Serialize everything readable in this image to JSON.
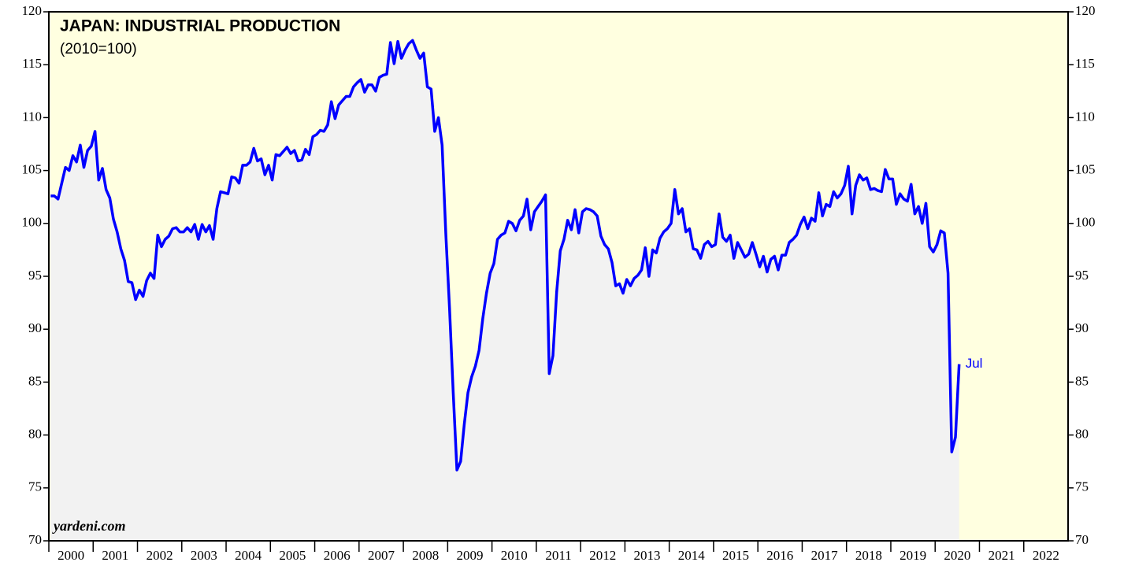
{
  "chart_data": {
    "type": "line",
    "title": "JAPAN: INDUSTRIAL PRODUCTION",
    "subtitle": "(2010=100)",
    "source": "yardeni.com",
    "annotation": "Jul",
    "color": "#0000ff",
    "x": [
      "2000-01",
      "2000-02",
      "2000-03",
      "2000-04",
      "2000-05",
      "2000-06",
      "2000-07",
      "2000-08",
      "2000-09",
      "2000-10",
      "2000-11",
      "2000-12",
      "2001-01",
      "2001-02",
      "2001-03",
      "2001-04",
      "2001-05",
      "2001-06",
      "2001-07",
      "2001-08",
      "2001-09",
      "2001-10",
      "2001-11",
      "2001-12",
      "2002-01",
      "2002-02",
      "2002-03",
      "2002-04",
      "2002-05",
      "2002-06",
      "2002-07",
      "2002-08",
      "2002-09",
      "2002-10",
      "2002-11",
      "2002-12",
      "2003-01",
      "2003-02",
      "2003-03",
      "2003-04",
      "2003-05",
      "2003-06",
      "2003-07",
      "2003-08",
      "2003-09",
      "2003-10",
      "2003-11",
      "2003-12",
      "2004-01",
      "2004-02",
      "2004-03",
      "2004-04",
      "2004-05",
      "2004-06",
      "2004-07",
      "2004-08",
      "2004-09",
      "2004-10",
      "2004-11",
      "2004-12",
      "2005-01",
      "2005-02",
      "2005-03",
      "2005-04",
      "2005-05",
      "2005-06",
      "2005-07",
      "2005-08",
      "2005-09",
      "2005-10",
      "2005-11",
      "2005-12",
      "2006-01",
      "2006-02",
      "2006-03",
      "2006-04",
      "2006-05",
      "2006-06",
      "2006-07",
      "2006-08",
      "2006-09",
      "2006-10",
      "2006-11",
      "2006-12",
      "2007-01",
      "2007-02",
      "2007-03",
      "2007-04",
      "2007-05",
      "2007-06",
      "2007-07",
      "2007-08",
      "2007-09",
      "2007-10",
      "2007-11",
      "2007-12",
      "2008-01",
      "2008-02",
      "2008-03",
      "2008-04",
      "2008-05",
      "2008-06",
      "2008-07",
      "2008-08",
      "2008-09",
      "2008-10",
      "2008-11",
      "2008-12",
      "2009-01",
      "2009-02",
      "2009-03",
      "2009-04",
      "2009-05",
      "2009-06",
      "2009-07",
      "2009-08",
      "2009-09",
      "2009-10",
      "2009-11",
      "2009-12",
      "2010-01",
      "2010-02",
      "2010-03",
      "2010-04",
      "2010-05",
      "2010-06",
      "2010-07",
      "2010-08",
      "2010-09",
      "2010-10",
      "2010-11",
      "2010-12",
      "2011-01",
      "2011-02",
      "2011-03",
      "2011-04",
      "2011-05",
      "2011-06",
      "2011-07",
      "2011-08",
      "2011-09",
      "2011-10",
      "2011-11",
      "2011-12",
      "2012-01",
      "2012-02",
      "2012-03",
      "2012-04",
      "2012-05",
      "2012-06",
      "2012-07",
      "2012-08",
      "2012-09",
      "2012-10",
      "2012-11",
      "2012-12",
      "2013-01",
      "2013-02",
      "2013-03",
      "2013-04",
      "2013-05",
      "2013-06",
      "2013-07",
      "2013-08",
      "2013-09",
      "2013-10",
      "2013-11",
      "2013-12",
      "2014-01",
      "2014-02",
      "2014-03",
      "2014-04",
      "2014-05",
      "2014-06",
      "2014-07",
      "2014-08",
      "2014-09",
      "2014-10",
      "2014-11",
      "2014-12",
      "2015-01",
      "2015-02",
      "2015-03",
      "2015-04",
      "2015-05",
      "2015-06",
      "2015-07",
      "2015-08",
      "2015-09",
      "2015-10",
      "2015-11",
      "2015-12",
      "2016-01",
      "2016-02",
      "2016-03",
      "2016-04",
      "2016-05",
      "2016-06",
      "2016-07",
      "2016-08",
      "2016-09",
      "2016-10",
      "2016-11",
      "2016-12",
      "2017-01",
      "2017-02",
      "2017-03",
      "2017-04",
      "2017-05",
      "2017-06",
      "2017-07",
      "2017-08",
      "2017-09",
      "2017-10",
      "2017-11",
      "2017-12",
      "2018-01",
      "2018-02",
      "2018-03",
      "2018-04",
      "2018-05",
      "2018-06",
      "2018-07",
      "2018-08",
      "2018-09",
      "2018-10",
      "2018-11",
      "2018-12",
      "2019-01",
      "2019-02",
      "2019-03",
      "2019-04",
      "2019-05",
      "2019-06",
      "2019-07",
      "2019-08",
      "2019-09",
      "2019-10",
      "2019-11",
      "2019-12",
      "2020-01",
      "2020-02",
      "2020-03",
      "2020-04",
      "2020-05",
      "2020-06",
      "2020-07"
    ],
    "values": [
      102.6,
      102.6,
      102.3,
      103.8,
      105.3,
      105.0,
      106.4,
      105.8,
      107.4,
      105.3,
      106.9,
      107.3,
      108.7,
      104.1,
      105.2,
      103.2,
      102.4,
      100.4,
      99.2,
      97.6,
      96.5,
      94.5,
      94.4,
      92.8,
      93.7,
      93.1,
      94.6,
      95.3,
      94.8,
      98.9,
      97.8,
      98.5,
      98.8,
      99.5,
      99.6,
      99.2,
      99.2,
      99.6,
      99.2,
      99.9,
      98.5,
      99.9,
      99.2,
      99.8,
      98.5,
      101.4,
      103.0,
      102.9,
      102.8,
      104.4,
      104.3,
      103.8,
      105.5,
      105.5,
      105.8,
      107.1,
      105.9,
      106.1,
      104.6,
      105.5,
      104.1,
      106.5,
      106.4,
      106.8,
      107.2,
      106.6,
      106.9,
      105.9,
      106.0,
      107.0,
      106.5,
      108.2,
      108.4,
      108.8,
      108.7,
      109.3,
      111.5,
      109.9,
      111.2,
      111.6,
      112.0,
      112.0,
      112.9,
      113.3,
      113.6,
      112.4,
      113.1,
      113.1,
      112.5,
      113.8,
      114.0,
      114.1,
      117.1,
      115.1,
      117.2,
      115.6,
      116.4,
      117.0,
      117.3,
      116.4,
      115.6,
      116.1,
      112.9,
      112.7,
      108.7,
      110.0,
      107.4,
      99.0,
      92.0,
      84.0,
      76.7,
      77.5,
      81.0,
      84.0,
      85.5,
      86.5,
      88.0,
      91.0,
      93.4,
      95.3,
      96.2,
      98.5,
      98.9,
      99.1,
      100.2,
      100.0,
      99.3,
      100.3,
      100.7,
      102.3,
      99.4,
      101.1,
      101.6,
      102.1,
      102.7,
      85.8,
      87.5,
      93.5,
      97.4,
      98.5,
      100.3,
      99.4,
      101.3,
      99.1,
      101.1,
      101.4,
      101.3,
      101.1,
      100.7,
      98.8,
      98.0,
      97.6,
      96.3,
      94.1,
      94.3,
      93.4,
      94.7,
      94.1,
      94.8,
      95.1,
      95.6,
      97.7,
      95.0,
      97.5,
      97.2,
      98.6,
      99.2,
      99.5,
      100.0,
      103.2,
      100.9,
      101.4,
      99.2,
      99.5,
      97.6,
      97.5,
      96.7,
      98.0,
      98.3,
      97.8,
      98.0,
      100.9,
      98.7,
      98.3,
      98.9,
      96.7,
      98.2,
      97.5,
      96.8,
      97.1,
      98.2,
      97.1,
      95.9,
      96.9,
      95.4,
      96.6,
      96.9,
      95.6,
      97.0,
      97.0,
      98.2,
      98.5,
      98.9,
      99.9,
      100.6,
      99.5,
      100.5,
      100.2,
      102.9,
      100.7,
      101.8,
      101.6,
      103.0,
      102.4,
      102.8,
      103.6,
      105.4,
      100.9,
      103.6,
      104.6,
      104.1,
      104.3,
      103.2,
      103.3,
      103.1,
      103.0,
      105.1,
      104.2,
      104.2,
      101.8,
      102.8,
      102.3,
      102.1,
      103.7,
      100.9,
      101.6,
      100.0,
      101.9,
      97.8,
      97.3,
      98.0,
      99.3,
      99.1,
      95.3,
      78.4,
      79.8,
      86.7
    ],
    "xlim": [
      "2000-01",
      "2023-01"
    ],
    "xticks": [
      2000,
      2001,
      2002,
      2003,
      2004,
      2005,
      2006,
      2007,
      2008,
      2009,
      2010,
      2011,
      2012,
      2013,
      2014,
      2015,
      2016,
      2017,
      2018,
      2019,
      2020,
      2021,
      2022
    ],
    "ylim": [
      70,
      120
    ],
    "yticks": [
      70,
      75,
      80,
      85,
      90,
      95,
      100,
      105,
      110,
      115,
      120
    ]
  }
}
